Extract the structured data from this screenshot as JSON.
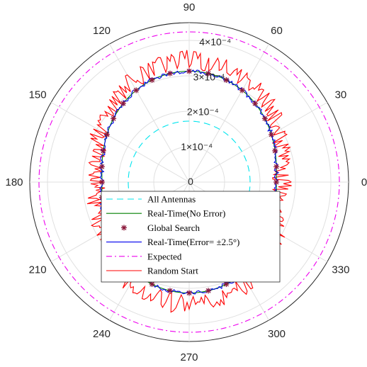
{
  "chart_data": {
    "type": "polar-line",
    "title": "",
    "theta_ticks": [
      "0",
      "30",
      "60",
      "90",
      "120",
      "150",
      "180",
      "210",
      "240",
      "270",
      "300",
      "330"
    ],
    "theta_tick_values_deg": [
      0,
      30,
      60,
      90,
      120,
      150,
      180,
      210,
      240,
      270,
      300,
      330
    ],
    "r_ticks": [
      "0",
      "1×10⁻⁴",
      "2×10⁻⁴",
      "3×10⁻⁴",
      "4×10⁻⁴"
    ],
    "r_tick_values": [
      0,
      0.0001,
      0.0002,
      0.0003,
      0.0004
    ],
    "rlim": [
      0,
      0.00045
    ],
    "grid": true,
    "legend_position": "center-bottom",
    "series": [
      {
        "name": "All Antennas",
        "style": "dashed",
        "color": "#00e5ee",
        "model": {
          "base": 0.000172,
          "amp": 0,
          "sharp": 0,
          "noise": 0
        }
      },
      {
        "name": "Real-Time(No Error)",
        "style": "solid",
        "color": "#008000",
        "model": {
          "base": 0.000246,
          "amp": 6.7e-05,
          "sharp": 1.6,
          "noise": 0
        }
      },
      {
        "name": "Global Search",
        "style": "markers",
        "marker": "asterisk",
        "color": "#8b1a3c",
        "marker_every_deg": 10,
        "model": {
          "base": 0.000246,
          "amp": 6.7e-05,
          "sharp": 1.6,
          "noise": 0
        }
      },
      {
        "name": "Real-Time(Error= ±2.5°)",
        "style": "solid",
        "color": "#0000ee",
        "model": {
          "base": 0.000246,
          "amp": 6.7e-05,
          "sharp": 1.6,
          "noise": 6e-06
        }
      },
      {
        "name": "Expected",
        "style": "dashdot",
        "color": "#ee00ee",
        "model": {
          "base": 0.000424,
          "amp": 0,
          "sharp": 0,
          "noise": 0
        }
      },
      {
        "name": "Random Start",
        "style": "solid",
        "color": "#ff0000",
        "model": {
          "base": 0.000262,
          "amp": 8.3e-05,
          "sharp": 1.6,
          "noise": 2.8e-05
        }
      }
    ]
  }
}
